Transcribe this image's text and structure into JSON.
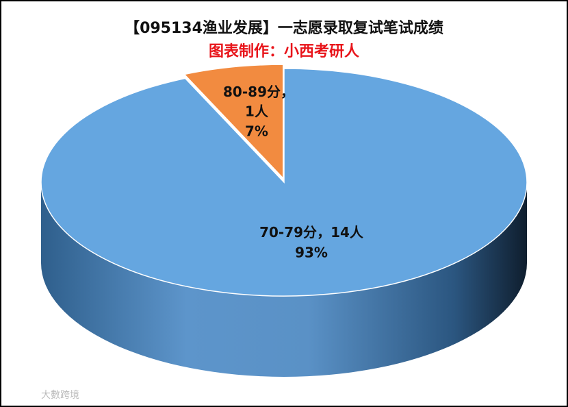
{
  "chart_data": {
    "type": "pie3d",
    "title": "【095134渔业发展】一志愿录取复试笔试成绩",
    "subtitle": "图表制作：小西考研人",
    "categories": [
      "70-79分",
      "80-89分"
    ],
    "separator": "，",
    "values": [
      14,
      1
    ],
    "value_labels": [
      "14人",
      "1人"
    ],
    "percents": [
      93,
      7
    ],
    "percent_labels": [
      "93%",
      "7%"
    ],
    "colors": [
      "#65a6e0",
      "#f28b40"
    ],
    "watermark": "大數跨境"
  }
}
